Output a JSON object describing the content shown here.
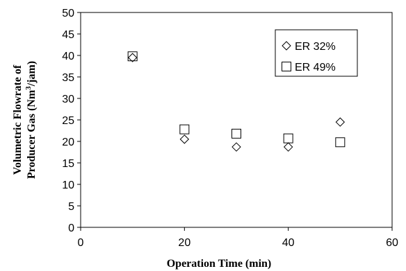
{
  "chart_data": {
    "type": "scatter",
    "xlabel": "Operation Time (min)",
    "ylabel_line1": "Volumetric Flowrate of",
    "ylabel_line2_prefix": "Producer Gas (Nm",
    "ylabel_line2_sup": "3",
    "ylabel_line2_suffix": "/jam)",
    "xlim": [
      0,
      60
    ],
    "ylim": [
      0,
      50
    ],
    "xticks": [
      0,
      20,
      40,
      60
    ],
    "yticks": [
      0,
      5,
      10,
      15,
      20,
      25,
      30,
      35,
      40,
      45,
      50
    ],
    "grid": false,
    "legend_position": "top-right",
    "series": [
      {
        "name": "ER 32%",
        "marker": "diamond",
        "x": [
          10,
          20,
          30,
          40,
          50
        ],
        "y": [
          39.5,
          20.5,
          18.7,
          18.7,
          24.5
        ]
      },
      {
        "name": "ER 49%",
        "marker": "square",
        "x": [
          10,
          20,
          30,
          40,
          50
        ],
        "y": [
          39.8,
          22.8,
          21.8,
          20.7,
          19.8
        ]
      }
    ]
  }
}
